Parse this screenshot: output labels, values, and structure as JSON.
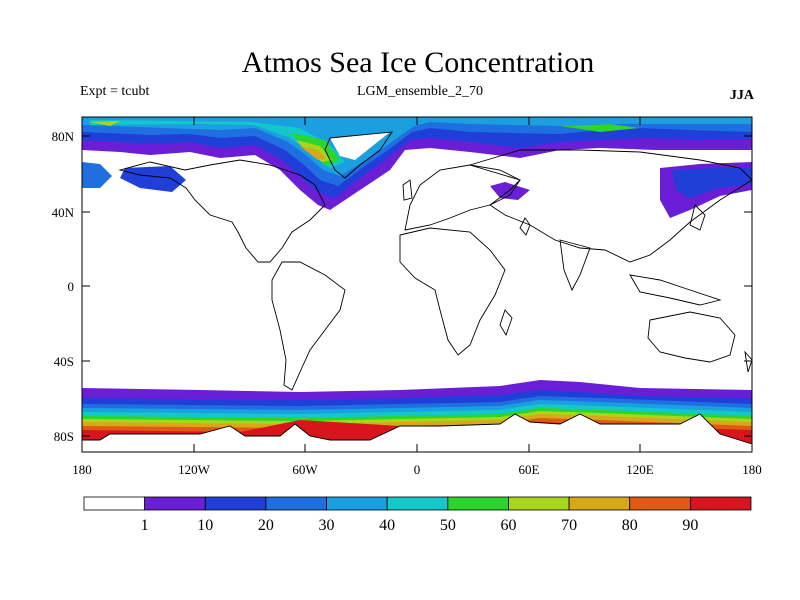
{
  "title": "Atmos Sea Ice Concentration",
  "left_label": "Expt = tcubt",
  "center_label": "LGM_ensemble_2_70",
  "right_label": "JJA",
  "lat_ticks": [
    "80N",
    "40N",
    "0",
    "40S",
    "80S"
  ],
  "lon_ticks": [
    "180",
    "120W",
    "60W",
    "0",
    "60E",
    "120E",
    "180"
  ],
  "colorbar": {
    "labels": [
      "1",
      "10",
      "20",
      "30",
      "40",
      "50",
      "60",
      "70",
      "80",
      "90"
    ],
    "colors": [
      "#ffffff",
      "#6a1fd6",
      "#1f3fd8",
      "#1f6fe0",
      "#1aa0e0",
      "#12c8c8",
      "#2cd42c",
      "#a8d61a",
      "#d8a81a",
      "#e05a14",
      "#d8141c"
    ]
  }
}
